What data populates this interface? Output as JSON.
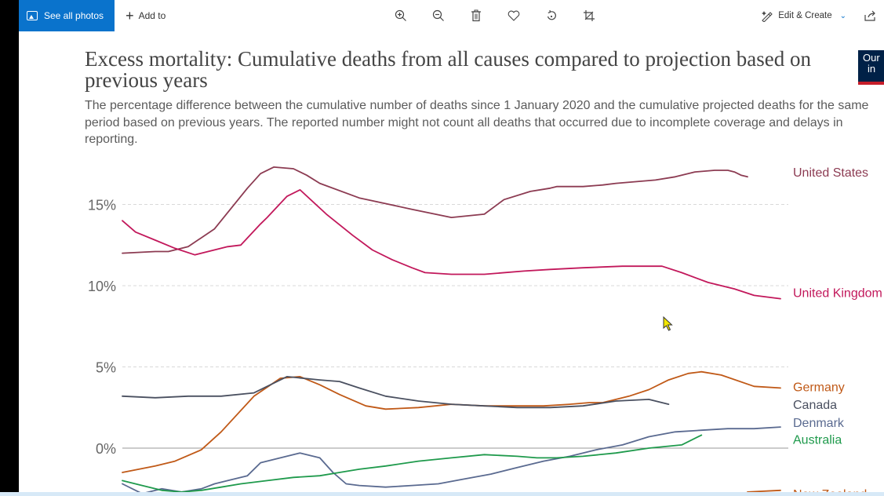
{
  "toolbar": {
    "see_all_label": "See all photos",
    "add_to_label": "Add to",
    "icons": [
      "zoom-in-icon",
      "zoom-out-icon",
      "delete-icon",
      "favorite-icon",
      "rotate-icon",
      "crop-icon"
    ],
    "edit_create_label": "Edit & Create",
    "accent": "#0a73cc"
  },
  "logo": {
    "line1": "Our",
    "line2": "in"
  },
  "chart_data": {
    "type": "line",
    "title": "Excess mortality: Cumulative deaths from all causes compared to projection based on previous years",
    "subtitle": "The percentage difference between the cumulative number of deaths since 1 January 2020 and the cumulative projected deaths for the same period based on previous years. The reported number might not count all deaths that occurred due to incomplete coverage and delays in reporting.",
    "y_ticks": [
      {
        "value": 0,
        "label": "0%"
      },
      {
        "value": 5,
        "label": "5%"
      },
      {
        "value": 10,
        "label": "10%"
      },
      {
        "value": 15,
        "label": "15%"
      }
    ],
    "grid": true,
    "legend": "right",
    "series": [
      {
        "name": "United States",
        "color": "#8c3b52",
        "x": [
          0,
          5,
          7,
          10,
          14,
          19,
          21,
          23,
          26,
          28,
          30,
          36,
          44,
          50,
          55,
          58,
          62,
          65,
          66,
          70,
          73,
          75,
          78,
          81,
          84,
          87,
          90,
          92,
          93,
          94,
          95
        ],
        "y": [
          12.0,
          12.1,
          12.1,
          12.4,
          13.5,
          16.0,
          16.9,
          17.3,
          17.2,
          16.8,
          16.3,
          15.4,
          14.7,
          14.2,
          14.4,
          15.3,
          15.8,
          16.0,
          16.1,
          16.1,
          16.2,
          16.3,
          16.4,
          16.5,
          16.7,
          17.0,
          17.1,
          17.1,
          17.0,
          16.8,
          16.7
        ]
      },
      {
        "name": "United Kingdom",
        "color": "#c2185b",
        "x": [
          0,
          2,
          5,
          8,
          11,
          16,
          18,
          21,
          22,
          25,
          27,
          31,
          35,
          38,
          41,
          44,
          46,
          50,
          52,
          55,
          61,
          65,
          70,
          76,
          82,
          85,
          89,
          93,
          96,
          100
        ],
        "y": [
          14.0,
          13.3,
          12.8,
          12.3,
          11.9,
          12.4,
          12.5,
          13.8,
          14.2,
          15.5,
          15.9,
          14.4,
          13.1,
          12.2,
          11.6,
          11.1,
          10.8,
          10.7,
          10.7,
          10.7,
          10.9,
          11.0,
          11.1,
          11.2,
          11.2,
          10.8,
          10.2,
          9.8,
          9.4,
          9.2
        ]
      },
      {
        "name": "Germany",
        "color": "#c05917",
        "x": [
          0,
          5,
          8,
          12,
          15,
          20,
          24,
          27,
          30,
          33,
          37,
          40,
          45,
          50,
          55,
          60,
          64,
          68,
          71,
          73,
          77,
          80,
          83,
          86,
          88,
          91,
          96,
          100
        ],
        "y": [
          -1.5,
          -1.1,
          -0.8,
          -0.1,
          1.0,
          3.2,
          4.3,
          4.4,
          3.9,
          3.3,
          2.6,
          2.4,
          2.5,
          2.7,
          2.6,
          2.6,
          2.6,
          2.7,
          2.8,
          2.8,
          3.2,
          3.6,
          4.2,
          4.6,
          4.7,
          4.5,
          3.8,
          3.7
        ]
      },
      {
        "name": "Canada",
        "color": "#4a5060",
        "x": [
          0,
          5,
          10,
          15,
          20,
          23,
          25,
          30,
          33,
          36,
          40,
          45,
          50,
          55,
          60,
          65,
          70,
          75,
          80,
          83
        ],
        "y": [
          3.2,
          3.1,
          3.2,
          3.2,
          3.4,
          4.0,
          4.4,
          4.2,
          4.1,
          3.7,
          3.2,
          2.9,
          2.7,
          2.6,
          2.5,
          2.5,
          2.6,
          2.9,
          3.0,
          2.7
        ]
      },
      {
        "name": "Denmark",
        "color": "#5a6a90",
        "x": [
          0,
          3,
          6,
          9,
          12,
          14,
          16,
          19,
          21,
          24,
          27,
          30,
          32,
          34,
          36,
          40,
          44,
          48,
          52,
          56,
          60,
          64,
          68,
          72,
          76,
          80,
          84,
          88,
          92,
          96,
          100
        ],
        "y": [
          -2.2,
          -2.8,
          -2.5,
          -2.7,
          -2.5,
          -2.2,
          -2.0,
          -1.7,
          -0.9,
          -0.6,
          -0.3,
          -0.6,
          -1.5,
          -2.2,
          -2.3,
          -2.4,
          -2.3,
          -2.2,
          -1.9,
          -1.6,
          -1.2,
          -0.8,
          -0.5,
          -0.1,
          0.2,
          0.7,
          1.0,
          1.1,
          1.2,
          1.2,
          1.3
        ]
      },
      {
        "name": "Australia",
        "color": "#1f9a4c",
        "x": [
          0,
          3,
          6,
          9,
          12,
          15,
          18,
          22,
          26,
          30,
          33,
          36,
          40,
          45,
          50,
          55,
          60,
          63,
          66,
          70,
          75,
          80,
          85,
          88
        ],
        "y": [
          -2.0,
          -2.3,
          -2.6,
          -2.7,
          -2.6,
          -2.4,
          -2.2,
          -2.0,
          -1.8,
          -1.7,
          -1.5,
          -1.3,
          -1.1,
          -0.8,
          -0.6,
          -0.4,
          -0.5,
          -0.6,
          -0.6,
          -0.5,
          -0.3,
          0.0,
          0.2,
          0.8
        ]
      },
      {
        "name": "New Zealand",
        "color": "#c05917",
        "x": [
          95,
          100
        ],
        "y": [
          -2.7,
          -2.6
        ]
      }
    ],
    "legend_labels": [
      {
        "name": "United States",
        "color": "#8c3b52",
        "y": 17.0
      },
      {
        "name": "United Kingdom",
        "color": "#c2185b",
        "y": 9.6
      },
      {
        "name": "Germany",
        "color": "#c05917",
        "y": 3.8
      },
      {
        "name": "Canada",
        "color": "#4a5060",
        "y": 2.7
      },
      {
        "name": "Denmark",
        "color": "#5a6a90",
        "y": 1.6
      },
      {
        "name": "Australia",
        "color": "#1f9a4c",
        "y": 0.55
      },
      {
        "name": "New Zealand",
        "color": "#c05917",
        "y": -2.8
      }
    ]
  }
}
